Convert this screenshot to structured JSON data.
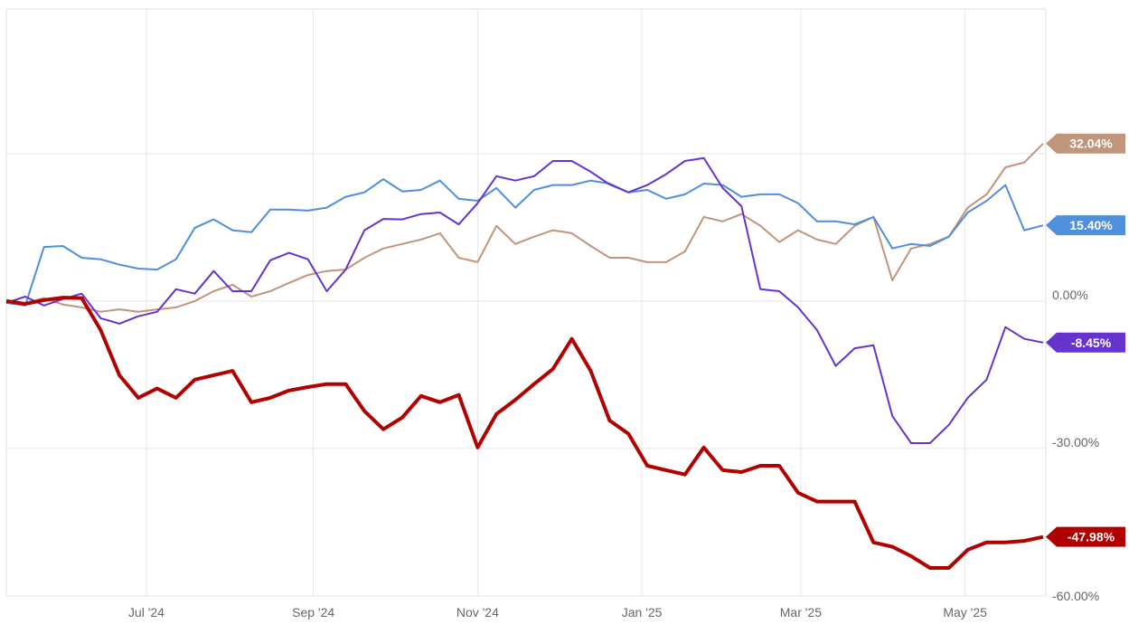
{
  "chart_data": {
    "type": "line",
    "title": "",
    "xlabel": "",
    "ylabel": "",
    "xlim": [
      "2024-05-10",
      "2025-05-31"
    ],
    "ylim": [
      -60,
      59.4
    ],
    "grid": true,
    "x_ticks": [
      {
        "date": "2024-07-01",
        "label": "Jul '24"
      },
      {
        "date": "2024-09-01",
        "label": "Sep '24"
      },
      {
        "date": "2024-11-01",
        "label": "Nov '24"
      },
      {
        "date": "2025-01-01",
        "label": "Jan '25"
      },
      {
        "date": "2025-03-01",
        "label": "Mar '25"
      },
      {
        "date": "2025-05-01",
        "label": "May '25"
      }
    ],
    "y_gridlines": [
      30,
      0,
      -30,
      -60
    ],
    "y_ticks": [
      {
        "value": 0,
        "label": "0.00%"
      },
      {
        "value": -30,
        "label": "-30.00%"
      },
      {
        "value": -60,
        "label": "-60.00%"
      }
    ],
    "x": [
      "2024-05-10",
      "2024-05-17",
      "2024-05-24",
      "2024-05-31",
      "2024-06-07",
      "2024-06-14",
      "2024-06-21",
      "2024-06-28",
      "2024-07-05",
      "2024-07-12",
      "2024-07-19",
      "2024-07-26",
      "2024-08-02",
      "2024-08-09",
      "2024-08-16",
      "2024-08-23",
      "2024-08-30",
      "2024-09-06",
      "2024-09-13",
      "2024-09-20",
      "2024-09-27",
      "2024-10-04",
      "2024-10-11",
      "2024-10-18",
      "2024-10-25",
      "2024-11-01",
      "2024-11-08",
      "2024-11-15",
      "2024-11-22",
      "2024-11-29",
      "2024-12-06",
      "2024-12-13",
      "2024-12-20",
      "2024-12-27",
      "2025-01-03",
      "2025-01-10",
      "2025-01-17",
      "2025-01-24",
      "2025-01-31",
      "2025-02-07",
      "2025-02-14",
      "2025-02-21",
      "2025-02-28",
      "2025-03-07",
      "2025-03-14",
      "2025-03-21",
      "2025-03-28",
      "2025-04-04",
      "2025-04-11",
      "2025-04-18",
      "2025-04-25",
      "2025-05-02",
      "2025-05-09",
      "2025-05-16",
      "2025-05-23",
      "2025-05-30"
    ],
    "series": [
      {
        "color": "#c0957a",
        "width": 2,
        "end_label": "32.04%",
        "values": [
          0,
          -0.4,
          0.6,
          -0.7,
          -1.3,
          -2.2,
          -1.7,
          -2.2,
          -1.7,
          -1.3,
          0,
          2.0,
          3.3,
          0.9,
          2.0,
          3.7,
          5.3,
          6.1,
          6.4,
          8.8,
          10.7,
          11.6,
          12.5,
          13.8,
          8.8,
          7.9,
          15.3,
          11.6,
          13.1,
          14.4,
          13.8,
          11.2,
          8.8,
          8.8,
          7.9,
          7.9,
          10.1,
          17.1,
          16.2,
          17.7,
          15.3,
          12.0,
          14.4,
          12.5,
          11.6,
          15.3,
          17.1,
          4.2,
          10.7,
          11.6,
          13.1,
          19.0,
          21.7,
          27.2,
          28.2,
          32.04
        ]
      },
      {
        "color": "#4f8fdc",
        "width": 2,
        "end_label": "15.40%",
        "values": [
          -0.4,
          -0.9,
          11.0,
          11.2,
          8.8,
          8.5,
          7.4,
          6.6,
          6.4,
          8.5,
          14.9,
          16.6,
          14.4,
          14.0,
          18.6,
          18.6,
          18.4,
          19.0,
          21.2,
          22.1,
          24.8,
          22.3,
          22.6,
          24.5,
          20.8,
          20.4,
          23.0,
          19.0,
          22.6,
          23.6,
          23.6,
          24.5,
          23.9,
          22.1,
          22.6,
          20.8,
          21.7,
          23.9,
          23.6,
          21.2,
          21.7,
          21.7,
          19.9,
          16.2,
          16.2,
          15.6,
          17.1,
          10.7,
          11.6,
          11.2,
          13.1,
          18.0,
          20.4,
          23.6,
          14.4,
          15.4
        ]
      },
      {
        "color": "#6633cc",
        "width": 2,
        "end_label": "-8.45%",
        "values": [
          -0.4,
          0.9,
          -0.9,
          0.4,
          1.5,
          -3.5,
          -4.6,
          -3.1,
          -2.2,
          2.4,
          1.5,
          6.1,
          2.0,
          2.0,
          8.3,
          9.8,
          8.5,
          2.0,
          6.4,
          14.4,
          16.7,
          16.6,
          17.7,
          18.0,
          15.6,
          19.9,
          25.4,
          24.5,
          25.4,
          28.5,
          28.5,
          26.3,
          23.7,
          22.1,
          23.6,
          25.8,
          28.5,
          29.1,
          23.0,
          19.3,
          2.4,
          2.0,
          -1.3,
          -5.9,
          -13.2,
          -9.6,
          -9.0,
          -23.4,
          -28.9,
          -28.9,
          -25.2,
          -19.7,
          -16.0,
          -5.3,
          -7.7,
          -8.45
        ]
      },
      {
        "color": "#b00000",
        "width": 4,
        "end_label": "-47.98%",
        "values": [
          0,
          -0.6,
          0.2,
          0.7,
          0.6,
          -5.9,
          -15.1,
          -19.7,
          -17.8,
          -19.7,
          -16.0,
          -15.1,
          -14.2,
          -20.6,
          -19.7,
          -18.2,
          -17.5,
          -16.9,
          -16.9,
          -22.4,
          -26.1,
          -23.7,
          -19.3,
          -20.6,
          -19.1,
          -29.8,
          -23.0,
          -20.1,
          -16.9,
          -13.8,
          -7.7,
          -14.2,
          -24.3,
          -27.0,
          -33.5,
          -34.4,
          -35.3,
          -29.8,
          -34.4,
          -34.8,
          -33.5,
          -33.5,
          -39.0,
          -40.8,
          -40.8,
          -40.8,
          -49.1,
          -50.0,
          -51.9,
          -54.3,
          -54.3,
          -50.6,
          -49.1,
          -49.1,
          -48.8,
          -47.98
        ]
      }
    ]
  }
}
